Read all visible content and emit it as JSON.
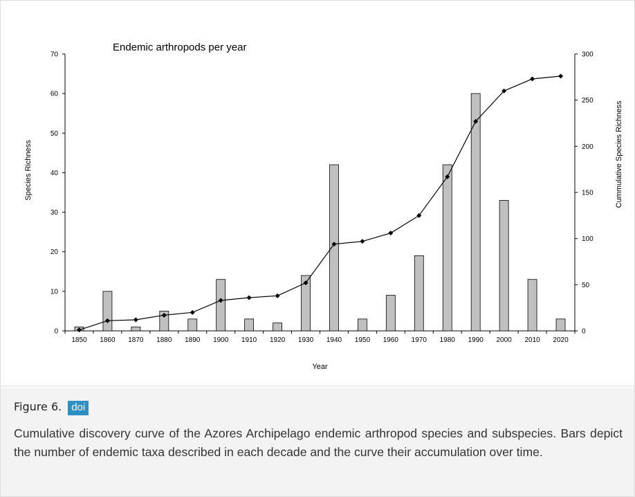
{
  "figure": {
    "label": "Figure 6.",
    "doi_label": "doi",
    "caption": "Cumulative discovery curve of the Azores Archipelago endemic arthropod species and subspecies. Bars depict the number of endemic taxa described in each decade and the curve their accumulation over time."
  },
  "colors": {
    "bar_fill": "#c0c0c0",
    "bar_stroke": "#000000",
    "line": "#000000",
    "doi_badge": "#2e8fc4"
  },
  "chart_data": {
    "type": "bar",
    "title": "Endemic arthropods per year",
    "xlabel": "Year",
    "ylabel": "Species Richness",
    "y2label": "Cummulative Species Richness",
    "categories": [
      "1850",
      "1860",
      "1870",
      "1880",
      "1890",
      "1900",
      "1910",
      "1920",
      "1930",
      "1940",
      "1950",
      "1960",
      "1970",
      "1980",
      "1990",
      "2000",
      "2010",
      "2020"
    ],
    "ylim": [
      0,
      70
    ],
    "yticks": [
      0,
      10,
      20,
      30,
      40,
      50,
      60,
      70
    ],
    "y2lim": [
      0,
      300
    ],
    "y2ticks": [
      0,
      50,
      100,
      150,
      200,
      250,
      300
    ],
    "series": [
      {
        "type": "bar",
        "axis": "left",
        "values": [
          1,
          10,
          1,
          5,
          3,
          13,
          3,
          2,
          14,
          42,
          3,
          9,
          19,
          42,
          60,
          33,
          13,
          3
        ]
      },
      {
        "type": "line",
        "axis": "right",
        "marker": "diamond",
        "values": [
          1,
          11,
          12,
          17,
          20,
          33,
          36,
          38,
          52,
          94,
          97,
          106,
          125,
          167,
          227,
          260,
          273,
          276
        ]
      }
    ],
    "grid": false,
    "legend": "none"
  }
}
